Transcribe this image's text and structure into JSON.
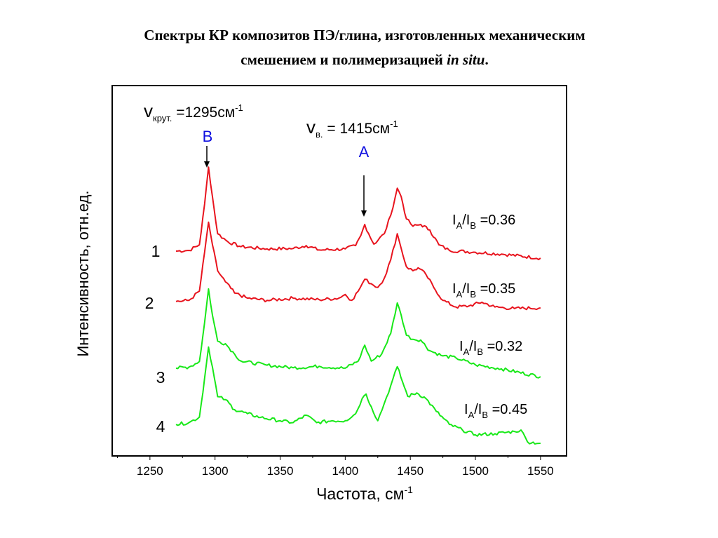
{
  "title": {
    "line1": "Спектры КР композитов ПЭ/глина, изготовленных механическим",
    "line2_prefix": "смешением и полимеризацией ",
    "line2_italic": "in situ",
    "line2_suffix": "."
  },
  "annotations": {
    "B": {
      "nu": "v",
      "sub": "крут.",
      "eq": " =1295см",
      "sup": "-1",
      "letter": "B"
    },
    "A": {
      "nu": "v",
      "sub": "в.",
      "eq": " = 1415см",
      "sup": "-1",
      "letter": "A"
    }
  },
  "colors": {
    "red": "#e8141e",
    "green": "#18e818",
    "blue": "#1010e0"
  },
  "chart_data": {
    "type": "line",
    "title": "Спектры КР композитов ПЭ/глина, изготовленных механическим смешением и полимеризацией in situ.",
    "xlabel": "Частота, см",
    "xlabel_sup": "-1",
    "ylabel": "Интенсивность, отн.ед.",
    "xlim": [
      1221,
      1570
    ],
    "ylim": [
      0,
      100
    ],
    "xticks": [
      "1250",
      "1300",
      "1350",
      "1400",
      "1450",
      "1500",
      "1550"
    ],
    "grid": false,
    "series": [
      {
        "name": "1",
        "color": "#e8141e",
        "ratio": {
          "I": "I",
          "a": "A",
          "b": "B",
          "val": " =0.36"
        },
        "x": [
          1270,
          1280,
          1288,
          1292,
          1295,
          1298,
          1302,
          1310,
          1320,
          1340,
          1360,
          1370,
          1380,
          1400,
          1408,
          1412,
          1415,
          1418,
          1422,
          1430,
          1435,
          1440,
          1443,
          1447,
          1452,
          1458,
          1465,
          1472,
          1480,
          1500,
          1520,
          1550
        ],
        "y": [
          55.3,
          55.5,
          57,
          68,
          78,
          70,
          60,
          57.8,
          56.5,
          55.9,
          56,
          56.8,
          55.6,
          55.9,
          56.8,
          59.5,
          62.5,
          60,
          57.2,
          60,
          65,
          72.3,
          70,
          64,
          62,
          62.5,
          61,
          57,
          55.5,
          55,
          54.5,
          53.4
        ]
      },
      {
        "name": "2",
        "color": "#e8141e",
        "ratio": {
          "I": "I",
          "a": "A",
          "b": "B",
          "val": " =0.35"
        },
        "x": [
          1270,
          1280,
          1288,
          1292,
          1295,
          1298,
          1302,
          1308,
          1315,
          1325,
          1340,
          1360,
          1380,
          1395,
          1400,
          1405,
          1410,
          1415,
          1420,
          1425,
          1430,
          1435,
          1440,
          1443,
          1447,
          1452,
          1456,
          1462,
          1468,
          1475,
          1485,
          1495,
          1505,
          1515,
          1530,
          1550
        ],
        "y": [
          41.7,
          42,
          44.5,
          55,
          63.1,
          57,
          50,
          47,
          44,
          42.6,
          42,
          42.6,
          42.2,
          42.6,
          43.6,
          42,
          44.5,
          47.7,
          46.5,
          45.5,
          48,
          53,
          60,
          56,
          51.1,
          50,
          50.8,
          49,
          45.5,
          42,
          40.2,
          40.5,
          41.5,
          40.2,
          39.8,
          40
        ]
      },
      {
        "name": "3",
        "color": "#18e818",
        "ratio": {
          "I": "I",
          "a": "A",
          "b": "B",
          "val": " =0.32"
        },
        "x": [
          1270,
          1280,
          1288,
          1292,
          1295,
          1298,
          1302,
          1308,
          1315,
          1320,
          1340,
          1360,
          1380,
          1400,
          1410,
          1415,
          1420,
          1428,
          1435,
          1440,
          1443,
          1447,
          1452,
          1458,
          1465,
          1475,
          1485,
          1500,
          1520,
          1550
        ],
        "y": [
          23.7,
          24,
          25.5,
          36,
          45.1,
          38,
          31,
          30.3,
          27.5,
          25.6,
          24.5,
          23.8,
          24.2,
          23.7,
          25.6,
          29.9,
          25.6,
          27.5,
          33.1,
          41.3,
          38,
          32.6,
          31.5,
          31.3,
          28.4,
          27,
          26.5,
          24.6,
          23.5,
          21.4
        ]
      },
      {
        "name": "4",
        "color": "#18e818",
        "ratio": {
          "I": "I",
          "a": "A",
          "b": "B",
          "val": " =0.45"
        },
        "x": [
          1270,
          1280,
          1288,
          1292,
          1295,
          1298,
          1302,
          1308,
          1315,
          1325,
          1335,
          1350,
          1360,
          1370,
          1378,
          1390,
          1400,
          1408,
          1413,
          1416,
          1420,
          1425,
          1430,
          1435,
          1440,
          1444,
          1448,
          1455,
          1462,
          1470,
          1480,
          1490,
          1500,
          1515,
          1530,
          1535,
          1540,
          1550
        ],
        "y": [
          8.5,
          9,
          10.5,
          21,
          29.4,
          24,
          16,
          15.2,
          12.5,
          11.4,
          10.4,
          9.5,
          9,
          11,
          9,
          9.5,
          9.5,
          11.4,
          15.5,
          16.7,
          13.3,
          9.5,
          14.2,
          19,
          24.1,
          20,
          16.1,
          17,
          15.5,
          12,
          8.5,
          7,
          5.7,
          6,
          6.6,
          7,
          3.8,
          3.4
        ]
      }
    ]
  }
}
